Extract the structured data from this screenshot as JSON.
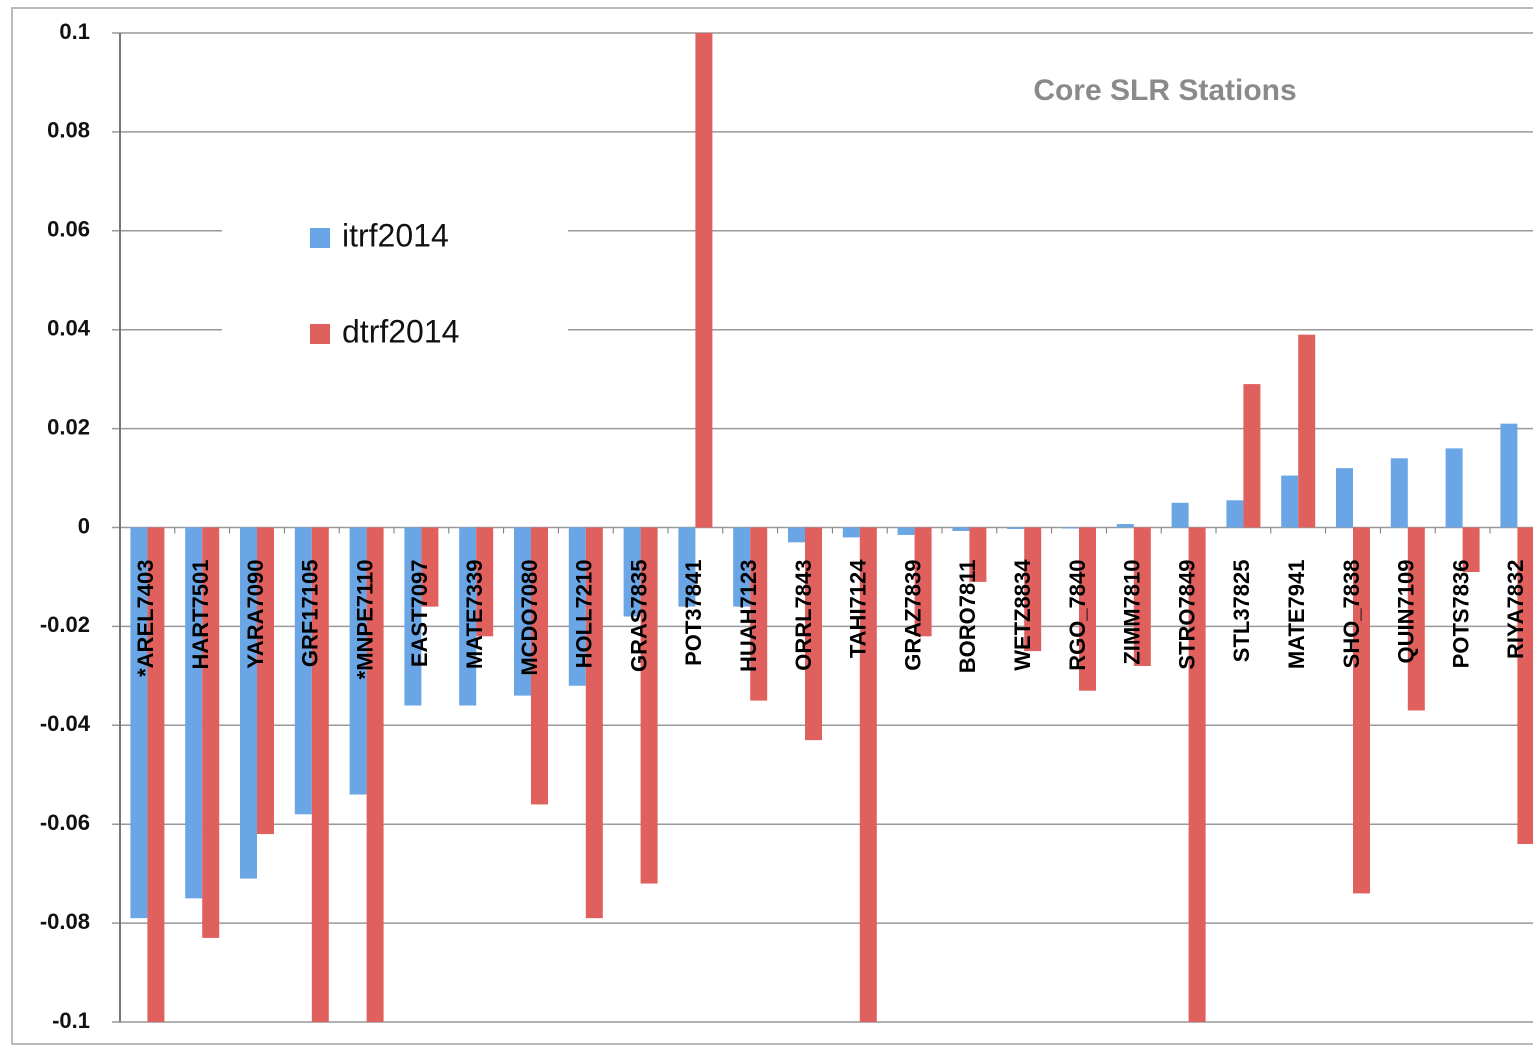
{
  "chart_data": {
    "type": "bar",
    "title": "Core SLR Stations",
    "categories": [
      "*AREL7403",
      "HART7501",
      "YARA7090",
      "GRF17105",
      "*MNPE7110",
      "EAST7097",
      "MATE7339",
      "MCDO7080",
      "HOLL7210",
      "GRAS7835",
      "POT37841",
      "HUAH7123",
      "ORRL7843",
      "TAHI7124",
      "GRAZ7839",
      "BORO7811",
      "WETZ8834",
      "RGO_7840",
      "ZIMM7810",
      "STRO7849",
      "STL37825",
      "MATE7941",
      "SHO_7838",
      "QUIN7109",
      "POTS7836",
      "RIYA7832"
    ],
    "series": [
      {
        "name": "itrf2014",
        "color": "#6aa6e6",
        "values": [
          -0.079,
          -0.075,
          -0.071,
          -0.058,
          -0.054,
          -0.036,
          -0.036,
          -0.034,
          -0.032,
          -0.018,
          -0.016,
          -0.016,
          -0.003,
          -0.002,
          -0.0015,
          -0.0007,
          -0.0003,
          -0.0002,
          0.0007,
          0.005,
          0.0055,
          0.0105,
          0.012,
          0.014,
          0.016,
          0.021
        ]
      },
      {
        "name": "dtrf2014",
        "color": "#e0605e",
        "values": [
          -0.1,
          -0.083,
          -0.062,
          -0.1,
          -0.1,
          -0.016,
          -0.022,
          -0.056,
          -0.079,
          -0.072,
          0.1,
          -0.035,
          -0.043,
          -0.1,
          -0.022,
          -0.011,
          -0.025,
          -0.033,
          -0.028,
          -0.1,
          0.029,
          0.039,
          -0.074,
          -0.037,
          -0.009,
          -0.064
        ]
      }
    ],
    "ylim": [
      -0.1,
      0.1
    ],
    "yticks": [
      0.1,
      0.08,
      0.06,
      0.04,
      0.02,
      0,
      -0.02,
      -0.04,
      -0.06,
      -0.08,
      -0.1
    ],
    "grid": true,
    "legend": "upper left"
  }
}
